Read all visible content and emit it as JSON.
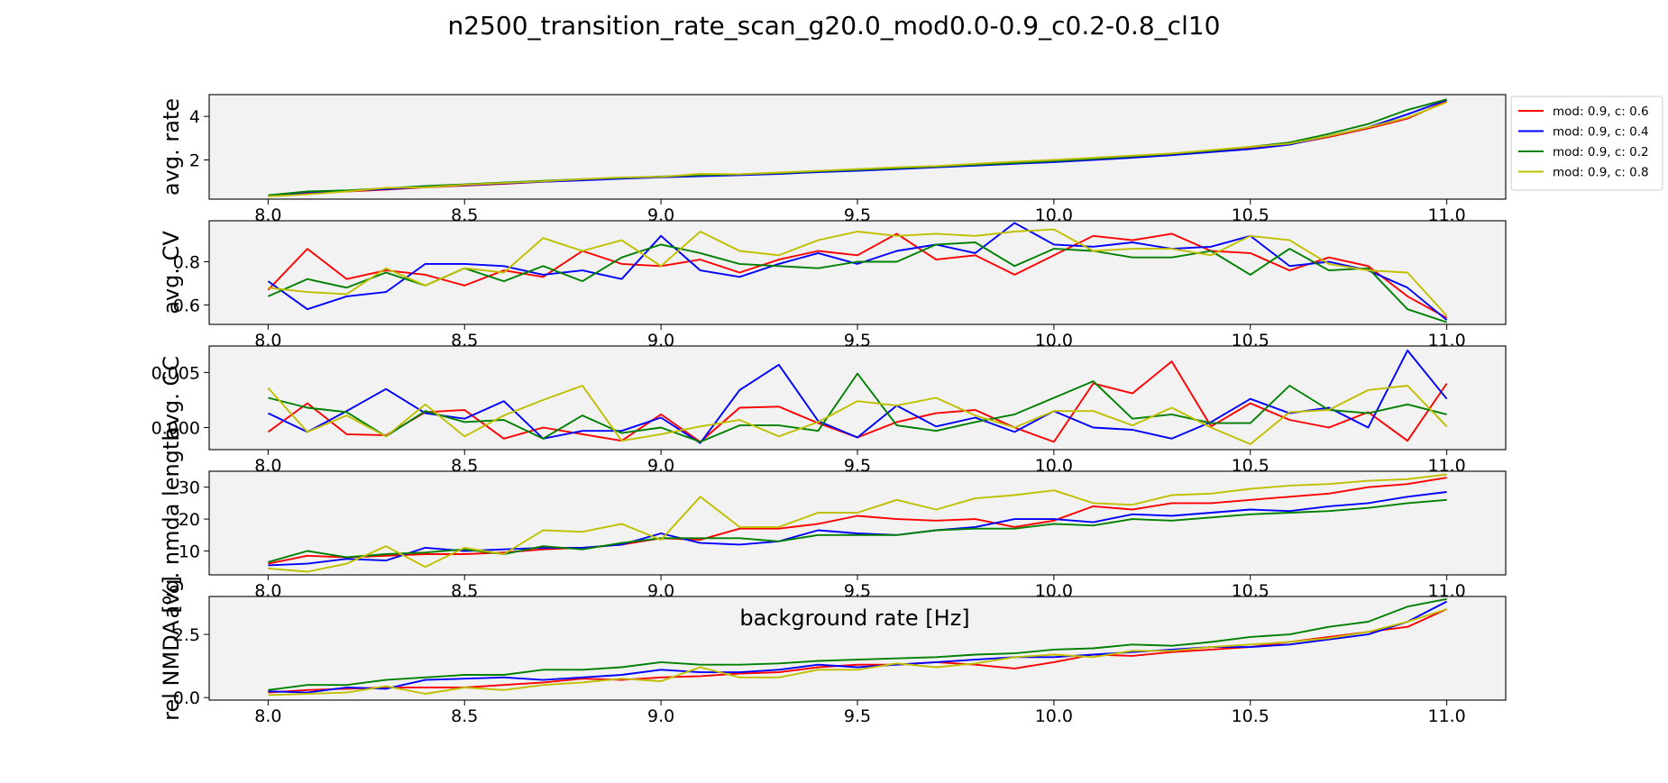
{
  "figure": {
    "title": "n2500_transition_rate_scan_g20.0_mod0.0-0.9_c0.2-0.8_cl10",
    "xlabel": "background rate [Hz]"
  },
  "legend": {
    "placement": "outside-right",
    "entries": [
      {
        "label": "mod: 0.9, c: 0.6",
        "color": "#ff0000"
      },
      {
        "label": "mod: 0.9, c: 0.4",
        "color": "#0000ff"
      },
      {
        "label": "mod: 0.9, c: 0.2",
        "color": "#008000"
      },
      {
        "label": "mod: 0.9, c: 0.8",
        "color": "#bfbf00"
      }
    ]
  },
  "chart_data": [
    {
      "type": "line",
      "ylabel": "avg. rate",
      "xlim": [
        7.85,
        11.15
      ],
      "ylim": [
        0.2,
        5.0
      ],
      "xticks": [
        "8.0",
        "8.5",
        "9.0",
        "9.5",
        "10.0",
        "10.5",
        "11.0"
      ],
      "yticks": [
        "2",
        "4"
      ],
      "background": "#f2f2f2",
      "x": [
        8.0,
        8.1,
        8.2,
        8.3,
        8.4,
        8.5,
        8.6,
        8.7,
        8.8,
        8.9,
        9.0,
        9.1,
        9.2,
        9.3,
        9.4,
        9.5,
        9.6,
        9.7,
        9.8,
        9.9,
        10.0,
        10.1,
        10.2,
        10.3,
        10.4,
        10.5,
        10.6,
        10.7,
        10.8,
        10.9,
        11.0
      ],
      "series": [
        {
          "name": "mod: 0.9, c: 0.6",
          "color": "#ff0000",
          "values": [
            0.35,
            0.48,
            0.55,
            0.64,
            0.74,
            0.82,
            0.9,
            1.0,
            1.08,
            1.15,
            1.22,
            1.28,
            1.32,
            1.38,
            1.45,
            1.52,
            1.6,
            1.68,
            1.76,
            1.84,
            1.92,
            2.02,
            2.12,
            2.24,
            2.38,
            2.55,
            2.72,
            3.05,
            3.45,
            3.9,
            4.7
          ]
        },
        {
          "name": "mod: 0.9, c: 0.4",
          "color": "#0000ff",
          "values": [
            0.34,
            0.52,
            0.58,
            0.66,
            0.76,
            0.84,
            0.92,
            1.0,
            1.06,
            1.14,
            1.2,
            1.25,
            1.3,
            1.36,
            1.44,
            1.5,
            1.58,
            1.66,
            1.74,
            1.82,
            1.9,
            2.0,
            2.1,
            2.22,
            2.36,
            2.5,
            2.7,
            3.1,
            3.5,
            4.1,
            4.75
          ]
        },
        {
          "name": "mod: 0.9, c: 0.2",
          "color": "#008000",
          "values": [
            0.38,
            0.55,
            0.6,
            0.7,
            0.8,
            0.88,
            0.96,
            1.04,
            1.12,
            1.18,
            1.24,
            1.3,
            1.34,
            1.4,
            1.48,
            1.55,
            1.62,
            1.7,
            1.78,
            1.86,
            1.95,
            2.05,
            2.16,
            2.28,
            2.42,
            2.6,
            2.8,
            3.2,
            3.65,
            4.3,
            4.78
          ]
        },
        {
          "name": "mod: 0.9, c: 0.8",
          "color": "#bfbf00",
          "values": [
            0.33,
            0.42,
            0.55,
            0.72,
            0.74,
            0.86,
            0.94,
            1.02,
            1.12,
            1.2,
            1.22,
            1.36,
            1.34,
            1.42,
            1.5,
            1.58,
            1.66,
            1.72,
            1.82,
            1.92,
            2.0,
            2.1,
            2.2,
            2.3,
            2.45,
            2.6,
            2.75,
            3.1,
            3.5,
            3.95,
            4.65
          ]
        }
      ]
    },
    {
      "type": "line",
      "ylabel": "avg. CV",
      "xlim": [
        7.85,
        11.15
      ],
      "ylim": [
        0.51,
        0.99
      ],
      "xticks": [
        "8.0",
        "8.5",
        "9.0",
        "9.5",
        "10.0",
        "10.5",
        "11.0"
      ],
      "yticks": [
        "0.6",
        "0.8"
      ],
      "background": "#f2f2f2",
      "x": [
        8.0,
        8.1,
        8.2,
        8.3,
        8.4,
        8.5,
        8.6,
        8.7,
        8.8,
        8.9,
        9.0,
        9.1,
        9.2,
        9.3,
        9.4,
        9.5,
        9.6,
        9.7,
        9.8,
        9.9,
        10.0,
        10.1,
        10.2,
        10.3,
        10.4,
        10.5,
        10.6,
        10.7,
        10.8,
        10.9,
        11.0
      ],
      "series": [
        {
          "name": "mod: 0.9, c: 0.6",
          "color": "#ff0000",
          "values": [
            0.67,
            0.86,
            0.72,
            0.76,
            0.74,
            0.69,
            0.76,
            0.73,
            0.85,
            0.79,
            0.78,
            0.81,
            0.75,
            0.81,
            0.85,
            0.83,
            0.93,
            0.81,
            0.83,
            0.74,
            0.83,
            0.92,
            0.9,
            0.93,
            0.85,
            0.84,
            0.76,
            0.82,
            0.78,
            0.64,
            0.54
          ]
        },
        {
          "name": "mod: 0.9, c: 0.4",
          "color": "#0000ff",
          "values": [
            0.71,
            0.58,
            0.64,
            0.66,
            0.79,
            0.79,
            0.78,
            0.74,
            0.76,
            0.72,
            0.92,
            0.76,
            0.73,
            0.79,
            0.84,
            0.79,
            0.85,
            0.88,
            0.84,
            0.98,
            0.88,
            0.87,
            0.89,
            0.86,
            0.87,
            0.92,
            0.78,
            0.8,
            0.76,
            0.68,
            0.53
          ]
        },
        {
          "name": "mod: 0.9, c: 0.2",
          "color": "#008000",
          "values": [
            0.64,
            0.72,
            0.68,
            0.75,
            0.69,
            0.77,
            0.71,
            0.78,
            0.71,
            0.82,
            0.88,
            0.84,
            0.79,
            0.78,
            0.77,
            0.8,
            0.8,
            0.88,
            0.89,
            0.78,
            0.86,
            0.85,
            0.82,
            0.82,
            0.85,
            0.74,
            0.86,
            0.76,
            0.77,
            0.58,
            0.52
          ]
        },
        {
          "name": "mod: 0.9, c: 0.8",
          "color": "#bfbf00",
          "values": [
            0.68,
            0.66,
            0.65,
            0.77,
            0.69,
            0.77,
            0.75,
            0.91,
            0.85,
            0.9,
            0.78,
            0.94,
            0.85,
            0.83,
            0.9,
            0.94,
            0.92,
            0.93,
            0.92,
            0.94,
            0.95,
            0.85,
            0.86,
            0.86,
            0.83,
            0.92,
            0.9,
            0.79,
            0.76,
            0.75,
            0.55
          ]
        }
      ]
    },
    {
      "type": "line",
      "ylabel": "avg. CC",
      "xlim": [
        7.85,
        11.15
      ],
      "ylim": [
        -0.002,
        0.0074
      ],
      "xticks": [
        "8.0",
        "8.5",
        "9.0",
        "9.5",
        "10.0",
        "10.5",
        "11.0"
      ],
      "yticks": [
        "0.000",
        "0.005"
      ],
      "background": "#f2f2f2",
      "x": [
        8.0,
        8.1,
        8.2,
        8.3,
        8.4,
        8.5,
        8.6,
        8.7,
        8.8,
        8.9,
        9.0,
        9.1,
        9.2,
        9.3,
        9.4,
        9.5,
        9.6,
        9.7,
        9.8,
        9.9,
        10.0,
        10.1,
        10.2,
        10.3,
        10.4,
        10.5,
        10.6,
        10.7,
        10.8,
        10.9,
        11.0
      ],
      "series": [
        {
          "name": "mod: 0.9, c: 0.6",
          "color": "#ff0000",
          "values": [
            -0.0004,
            0.0022,
            -0.0006,
            -0.0007,
            0.0014,
            0.0016,
            -0.001,
            0.0,
            -0.0006,
            -0.0012,
            0.0012,
            -0.0013,
            0.0018,
            0.0019,
            0.0004,
            -0.0009,
            0.0005,
            0.0013,
            0.0016,
            0.0,
            -0.0013,
            0.004,
            0.0031,
            0.006,
            0.0001,
            0.0022,
            0.0007,
            0.0,
            0.0014,
            -0.0012,
            0.004
          ]
        },
        {
          "name": "mod: 0.9, c: 0.4",
          "color": "#0000ff",
          "values": [
            0.0013,
            -0.0004,
            0.0015,
            0.0035,
            0.0013,
            0.0008,
            0.0024,
            -0.001,
            -0.0003,
            -0.0003,
            0.0009,
            -0.0014,
            0.0034,
            0.0057,
            0.0006,
            -0.0009,
            0.002,
            0.0001,
            0.0009,
            -0.0004,
            0.0015,
            0.0,
            -0.0002,
            -0.001,
            0.0005,
            0.0026,
            0.0013,
            0.0018,
            0.0,
            0.007,
            0.0026
          ]
        },
        {
          "name": "mod: 0.9, c: 0.2",
          "color": "#008000",
          "values": [
            0.0027,
            0.0018,
            0.0014,
            -0.0008,
            0.0015,
            0.0005,
            0.0007,
            -0.001,
            0.0011,
            -0.0005,
            0.0,
            -0.0013,
            0.0002,
            0.0002,
            -0.0003,
            0.0049,
            0.0002,
            -0.0003,
            0.0005,
            0.0012,
            0.0027,
            0.0042,
            0.0008,
            0.0012,
            0.0004,
            0.0004,
            0.0038,
            0.0016,
            0.0013,
            0.0021,
            0.0012
          ]
        },
        {
          "name": "mod: 0.9, c: 0.8",
          "color": "#bfbf00",
          "values": [
            0.0036,
            -0.0004,
            0.0011,
            -0.0008,
            0.0021,
            -0.0008,
            0.0011,
            0.0025,
            0.0038,
            -0.0012,
            -0.0006,
            0.0001,
            0.0007,
            -0.0008,
            0.0005,
            0.0024,
            0.002,
            0.0027,
            0.0011,
            0.0,
            0.0015,
            0.0015,
            0.0002,
            0.0018,
            0.0,
            -0.0015,
            0.0014,
            0.0016,
            0.0034,
            0.0038,
            0.0001
          ]
        }
      ]
    },
    {
      "type": "line",
      "ylabel": "avg. nmda length",
      "xlim": [
        7.85,
        11.15
      ],
      "ylim": [
        2.5,
        35.0
      ],
      "xticks": [
        "8.0",
        "8.5",
        "9.0",
        "9.5",
        "10.0",
        "10.5",
        "11.0"
      ],
      "yticks": [
        "10",
        "20",
        "30"
      ],
      "background": "#f2f2f2",
      "x": [
        8.0,
        8.1,
        8.2,
        8.3,
        8.4,
        8.5,
        8.6,
        8.7,
        8.8,
        8.9,
        9.0,
        9.1,
        9.2,
        9.3,
        9.4,
        9.5,
        9.6,
        9.7,
        9.8,
        9.9,
        10.0,
        10.1,
        10.2,
        10.3,
        10.4,
        10.5,
        10.6,
        10.7,
        10.8,
        10.9,
        11.0
      ],
      "series": [
        {
          "name": "mod: 0.9, c: 0.6",
          "color": "#ff0000",
          "values": [
            6.0,
            8.5,
            8.0,
            8.5,
            9.0,
            9.0,
            9.5,
            10.5,
            11.0,
            12.0,
            14.0,
            13.5,
            17.0,
            17.0,
            18.5,
            21.0,
            20.0,
            19.5,
            20.0,
            17.5,
            19.5,
            24.0,
            23.0,
            25.0,
            25.0,
            26.0,
            27.0,
            28.0,
            30.0,
            31.0,
            33.0
          ]
        },
        {
          "name": "mod: 0.9, c: 0.4",
          "color": "#0000ff",
          "values": [
            5.5,
            6.0,
            7.5,
            7.0,
            11.0,
            10.0,
            10.5,
            11.0,
            11.0,
            12.0,
            15.5,
            12.5,
            12.0,
            13.0,
            16.5,
            15.5,
            15.0,
            16.5,
            17.5,
            20.0,
            20.0,
            19.0,
            21.5,
            21.0,
            22.0,
            23.0,
            22.5,
            24.0,
            25.0,
            27.0,
            28.5
          ]
        },
        {
          "name": "mod: 0.9, c: 0.2",
          "color": "#008000",
          "values": [
            6.5,
            10.0,
            8.0,
            9.0,
            9.5,
            10.5,
            9.0,
            11.5,
            10.5,
            12.5,
            14.0,
            14.0,
            14.0,
            13.0,
            15.0,
            15.0,
            15.0,
            16.5,
            17.0,
            17.0,
            18.5,
            18.0,
            20.0,
            19.5,
            20.5,
            21.5,
            22.0,
            22.5,
            23.5,
            25.0,
            26.0
          ]
        },
        {
          "name": "mod: 0.9, c: 0.8",
          "color": "#bfbf00",
          "values": [
            4.5,
            3.5,
            6.0,
            11.5,
            5.0,
            11.0,
            9.0,
            16.5,
            16.0,
            18.5,
            13.5,
            27.0,
            17.5,
            17.5,
            22.0,
            22.0,
            26.0,
            23.0,
            26.5,
            27.5,
            29.0,
            25.0,
            24.5,
            27.5,
            28.0,
            29.5,
            30.5,
            31.0,
            32.0,
            32.5,
            34.0
          ]
        }
      ]
    },
    {
      "type": "line",
      "ylabel": "rel NMDA [%]",
      "xlim": [
        7.85,
        11.15
      ],
      "ylim": [
        -0.1,
        4.0
      ],
      "xticks": [
        "8.0",
        "8.5",
        "9.0",
        "9.5",
        "10.0",
        "10.5",
        "11.0"
      ],
      "yticks": [
        "0.0",
        "2.5"
      ],
      "background": "#f2f2f2",
      "x": [
        8.0,
        8.1,
        8.2,
        8.3,
        8.4,
        8.5,
        8.6,
        8.7,
        8.8,
        8.9,
        9.0,
        9.1,
        9.2,
        9.3,
        9.4,
        9.5,
        9.6,
        9.7,
        9.8,
        9.9,
        10.0,
        10.1,
        10.2,
        10.3,
        10.4,
        10.5,
        10.6,
        10.7,
        10.8,
        10.9,
        11.0
      ],
      "series": [
        {
          "name": "mod: 0.9, c: 0.6",
          "color": "#ff0000",
          "values": [
            0.2,
            0.3,
            0.35,
            0.4,
            0.4,
            0.4,
            0.5,
            0.6,
            0.75,
            0.7,
            0.8,
            0.85,
            0.95,
            1.0,
            1.2,
            1.3,
            1.3,
            1.4,
            1.3,
            1.15,
            1.4,
            1.7,
            1.65,
            1.8,
            1.9,
            2.0,
            2.2,
            2.4,
            2.6,
            2.8,
            3.5
          ]
        },
        {
          "name": "mod: 0.9, c: 0.4",
          "color": "#0000ff",
          "values": [
            0.25,
            0.2,
            0.4,
            0.35,
            0.7,
            0.75,
            0.8,
            0.7,
            0.8,
            0.9,
            1.1,
            1.0,
            1.0,
            1.1,
            1.3,
            1.2,
            1.3,
            1.4,
            1.5,
            1.6,
            1.6,
            1.7,
            1.8,
            1.9,
            2.0,
            2.0,
            2.1,
            2.3,
            2.5,
            3.0,
            3.8
          ]
        },
        {
          "name": "mod: 0.9, c: 0.2",
          "color": "#008000",
          "values": [
            0.3,
            0.5,
            0.5,
            0.7,
            0.8,
            0.9,
            0.9,
            1.1,
            1.1,
            1.2,
            1.4,
            1.3,
            1.3,
            1.35,
            1.45,
            1.5,
            1.55,
            1.6,
            1.7,
            1.75,
            1.9,
            1.95,
            2.1,
            2.05,
            2.2,
            2.4,
            2.5,
            2.8,
            3.0,
            3.6,
            3.9
          ]
        },
        {
          "name": "mod: 0.9, c: 0.8",
          "color": "#bfbf00",
          "values": [
            0.1,
            0.15,
            0.2,
            0.45,
            0.15,
            0.4,
            0.3,
            0.5,
            0.6,
            0.75,
            0.65,
            1.2,
            0.8,
            0.8,
            1.1,
            1.1,
            1.35,
            1.2,
            1.35,
            1.6,
            1.7,
            1.6,
            1.85,
            1.85,
            2.0,
            2.1,
            2.2,
            2.35,
            2.6,
            3.0,
            3.5
          ]
        }
      ]
    }
  ]
}
